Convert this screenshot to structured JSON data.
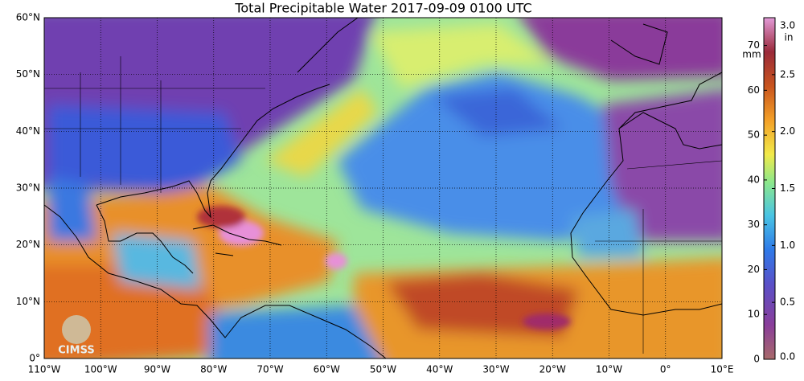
{
  "title": "Total Precipitable Water  2017-09-09 0100 UTC",
  "map": {
    "xlim": [
      -110,
      10
    ],
    "ylim": [
      0,
      60
    ],
    "lon_ticks": [
      {
        "value": -110,
        "label": "110°W"
      },
      {
        "value": -100,
        "label": "100°W"
      },
      {
        "value": -90,
        "label": "90°W"
      },
      {
        "value": -80,
        "label": "80°W"
      },
      {
        "value": -70,
        "label": "70°W"
      },
      {
        "value": -60,
        "label": "60°W"
      },
      {
        "value": -50,
        "label": "50°W"
      },
      {
        "value": -40,
        "label": "40°W"
      },
      {
        "value": -30,
        "label": "30°W"
      },
      {
        "value": -20,
        "label": "20°W"
      },
      {
        "value": -10,
        "label": "10°W"
      },
      {
        "value": 0,
        "label": "0°"
      },
      {
        "value": 10,
        "label": "10°E"
      }
    ],
    "lat_ticks": [
      {
        "value": 0,
        "label": "0°"
      },
      {
        "value": 10,
        "label": "10°N"
      },
      {
        "value": 20,
        "label": "20°N"
      },
      {
        "value": 30,
        "label": "30°N"
      },
      {
        "value": 40,
        "label": "40°N"
      },
      {
        "value": 50,
        "label": "50°N"
      },
      {
        "value": 60,
        "label": "60°N"
      }
    ],
    "grid": true
  },
  "colorbar": {
    "mm_unit": "mm",
    "in_unit": "in",
    "mm_lim": [
      0,
      76.2
    ],
    "in_lim": [
      0,
      3.0
    ],
    "mm_ticks": [
      0,
      10,
      20,
      30,
      40,
      50,
      60,
      70
    ],
    "in_ticks": [
      {
        "value": 0,
        "label": "0.0"
      },
      {
        "value": 0.5,
        "label": "0.5"
      },
      {
        "value": 1.0,
        "label": "1.0"
      },
      {
        "value": 1.5,
        "label": "1.5"
      },
      {
        "value": 2.0,
        "label": "2.0"
      },
      {
        "value": 2.5,
        "label": "2.5"
      },
      {
        "value": 3.0,
        "label": "3.0"
      }
    ]
  },
  "logo": "CIMSS"
}
